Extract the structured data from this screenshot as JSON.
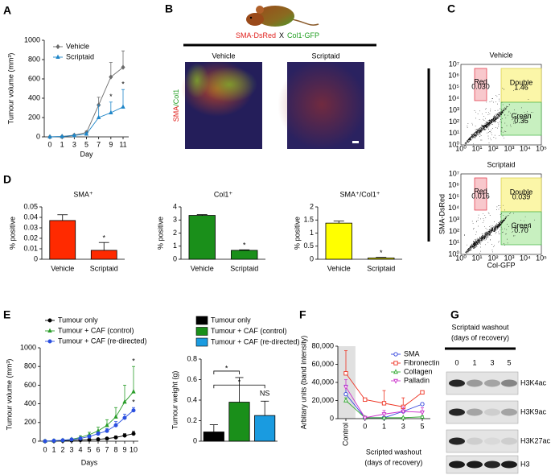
{
  "chart_data": [
    {
      "label": "A",
      "type": "line",
      "ylabel": "Tumour volume (mm³)",
      "xlabel": "Day",
      "categories": [
        "0",
        "1",
        "3",
        "5",
        "7",
        "9",
        "11"
      ],
      "ylim": [
        0,
        1000
      ],
      "yticks": [
        0,
        200,
        400,
        600,
        800,
        1000
      ],
      "legend": "upper left",
      "series": [
        {
          "name": "Vehicle",
          "color": "#6b6b6b",
          "marker": "diamond",
          "values": [
            0,
            4,
            18,
            45,
            330,
            620,
            720
          ],
          "errors": [
            0,
            2,
            6,
            15,
            80,
            150,
            170
          ]
        },
        {
          "name": "Scriptaid",
          "color": "#1f86c8",
          "marker": "triangle",
          "values": [
            0,
            4,
            14,
            30,
            200,
            250,
            310
          ],
          "errors": [
            0,
            2,
            5,
            10,
            130,
            110,
            180
          ]
        }
      ],
      "annotations": [
        {
          "x": "9",
          "series": "Scriptaid",
          "text": "*"
        },
        {
          "x": "11",
          "series": "Scriptaid",
          "text": "*"
        }
      ]
    },
    {
      "label": "D",
      "type": "bar",
      "title": "SMA⁺",
      "ylabel": "% positive",
      "categories": [
        "Vehicle",
        "Scriptaid"
      ],
      "values": [
        0.037,
        0.0085
      ],
      "errors": [
        0.0055,
        0.0075
      ],
      "color": "#ff2a00",
      "ylim": [
        0,
        0.05
      ],
      "yticks": [
        0,
        0.01,
        0.02,
        0.03,
        0.04,
        0.05
      ],
      "annotations": [
        {
          "x": "Scriptaid",
          "text": "*"
        }
      ]
    },
    {
      "type": "bar",
      "title": "Col1⁺",
      "ylabel": "% positive",
      "categories": [
        "Vehicle",
        "Scriptaid"
      ],
      "values": [
        3.35,
        0.68
      ],
      "errors": [
        0.06,
        0.04
      ],
      "color": "#1a8f1a",
      "ylim": [
        0,
        4
      ],
      "yticks": [
        0,
        1,
        2,
        3,
        4
      ],
      "annotations": [
        {
          "x": "Scriptaid",
          "text": "*"
        }
      ]
    },
    {
      "type": "bar",
      "title": "SMA⁺/Col1⁺",
      "ylabel": "% positive",
      "categories": [
        "Vehicle",
        "Scriptaid"
      ],
      "values": [
        1.38,
        0.05
      ],
      "errors": [
        0.08,
        0.02
      ],
      "color": "#ffff00",
      "ylim": [
        0,
        2
      ],
      "yticks": [
        0,
        0.5,
        1,
        1.5,
        2
      ],
      "annotations": [
        {
          "x": "Scriptaid",
          "text": "*"
        }
      ]
    },
    {
      "label": "E",
      "type": "line",
      "ylabel": "Tumour volume (mm³)",
      "xlabel": "Days",
      "categories": [
        "0",
        "1",
        "2",
        "3",
        "4",
        "5",
        "6",
        "7",
        "8",
        "9",
        "10"
      ],
      "ylim": [
        0,
        1000
      ],
      "yticks": [
        0,
        200,
        400,
        600,
        800,
        1000
      ],
      "legend": "above",
      "series": [
        {
          "name": "Tumour only",
          "color": "#000000",
          "marker": "circle",
          "values": [
            0,
            2,
            5,
            8,
            12,
            15,
            20,
            28,
            40,
            60,
            80
          ],
          "errors": [
            0,
            1,
            2,
            3,
            5,
            6,
            8,
            10,
            15,
            20,
            25
          ]
        },
        {
          "name": "Tumour + CAF (control)",
          "color": "#2a9d2a",
          "marker": "triangle",
          "values": [
            0,
            5,
            10,
            20,
            40,
            70,
            110,
            170,
            260,
            420,
            530
          ],
          "errors": [
            0,
            3,
            5,
            8,
            15,
            25,
            40,
            60,
            100,
            180,
            270
          ]
        },
        {
          "name": "Tumour + CAF (re-directed)",
          "color": "#2a4fe0",
          "marker": "circle",
          "values": [
            0,
            5,
            10,
            18,
            30,
            50,
            80,
            110,
            170,
            250,
            330
          ],
          "errors": [
            0,
            2,
            4,
            6,
            10,
            15,
            20,
            25,
            40,
            40,
            30
          ]
        }
      ],
      "annotations": [
        {
          "x": "10",
          "series": "Tumour + CAF (control)",
          "text": "*"
        },
        {
          "x": "10",
          "series": "Tumour + CAF (re-directed)",
          "text": "*"
        }
      ]
    },
    {
      "type": "bar",
      "ylabel": "Tumour weight (g)",
      "categories": [
        null
      ],
      "ylim": [
        0,
        0.8
      ],
      "yticks": [
        0,
        0.2,
        0.4,
        0.6,
        0.8
      ],
      "legend": "above",
      "series": [
        {
          "name": "Tumour only",
          "color": "#000000",
          "values": [
            0.09
          ],
          "errors": [
            0.07
          ]
        },
        {
          "name": "Tumour + CAF (control)",
          "color": "#1a8f1a",
          "values": [
            0.38
          ],
          "errors": [
            0.24
          ]
        },
        {
          "name": "Tumour + CAF (re-directed)",
          "color": "#1a9be0",
          "values": [
            0.25
          ],
          "errors": [
            0.14
          ]
        }
      ],
      "annotations": [
        {
          "from": "Tumour only",
          "to": "Tumour + CAF (control)",
          "text": "*"
        },
        {
          "from": "Tumour only",
          "to": "Tumour + CAF (re-directed)",
          "text": "*"
        },
        {
          "series": "Tumour + CAF (re-directed)",
          "text": "NS"
        }
      ]
    },
    {
      "label": "F",
      "type": "line",
      "ylabel": "Arbitary units (band intensity)",
      "xlabel": [
        "Scripted washout",
        "(days of recovery)"
      ],
      "categories": [
        "Control",
        "0",
        "1",
        "3",
        "5"
      ],
      "ylim": [
        0,
        80000
      ],
      "yticks": [
        0,
        {
          "value": 20000,
          "label": "20,000"
        },
        {
          "value": 40000,
          "label": "40,000"
        },
        {
          "value": 60000,
          "label": "60,000"
        },
        {
          "value": 80000,
          "label": "80,000"
        }
      ],
      "legend": "upper right",
      "open_markers": true,
      "series": [
        {
          "name": "SMA",
          "color": "#3344dd",
          "marker": "circle",
          "values": [
            27000,
            1000,
            1000,
            8000,
            16000
          ],
          "errors": [
            10000,
            500,
            500,
            3000,
            1500
          ]
        },
        {
          "name": "Fibronectin",
          "color": "#ee3322",
          "marker": "square",
          "values": [
            50000,
            21000,
            17000,
            13000,
            29000
          ],
          "errors": [
            25000,
            1000,
            14000,
            10000,
            1500
          ]
        },
        {
          "name": "Collagen",
          "color": "#33aa33",
          "marker": "triangle",
          "values": [
            20000,
            1000,
            1000,
            1000,
            2000
          ],
          "errors": [
            3000,
            500,
            500,
            500,
            1000
          ]
        },
        {
          "name": "Palladin",
          "color": "#cc33cc",
          "marker": "triangle-down",
          "values": [
            35000,
            1000,
            5000,
            8000,
            7000
          ],
          "errors": [
            8000,
            500,
            4000,
            5000,
            5000
          ]
        }
      ]
    }
  ],
  "panel_b": {
    "label": "B",
    "cross": [
      "SMA-DsRed",
      "X",
      "Col1-GFP"
    ],
    "conditions": [
      "Vehicle",
      "Scriptaid"
    ],
    "stain": [
      "SMA",
      "/Col1"
    ]
  },
  "panel_c": {
    "label": "C",
    "ylabel": "SMA-DsRed",
    "xlabel": "Col-GFP",
    "yticks": [
      "10⁰",
      "10¹",
      "10²",
      "10³",
      "10⁴",
      "10⁵",
      "10⁶",
      "10⁷"
    ],
    "xticks": [
      "10⁰",
      "10¹",
      "10²",
      "10³",
      "10⁴",
      "10⁵"
    ],
    "plots": [
      {
        "title": "Vehicle",
        "gates": [
          {
            "name": "Red",
            "value": "0.030"
          },
          {
            "name": "Double",
            "value": "1.46"
          },
          {
            "name": "Green",
            "value": "0.35"
          }
        ]
      },
      {
        "title": "Scriptaid",
        "gates": [
          {
            "name": "Red",
            "value": "0.016"
          },
          {
            "name": "Double",
            "value": "0.039"
          },
          {
            "name": "Green",
            "value": "0.70"
          }
        ]
      }
    ]
  },
  "panel_g": {
    "label": "G",
    "title": [
      "Scriptaid washout",
      "(days of recovery)"
    ],
    "lanes": [
      "0",
      "1",
      "3",
      "5"
    ],
    "rows": [
      "H3K4ac",
      "H3K9ac",
      "H3K27ac",
      "H3"
    ]
  }
}
